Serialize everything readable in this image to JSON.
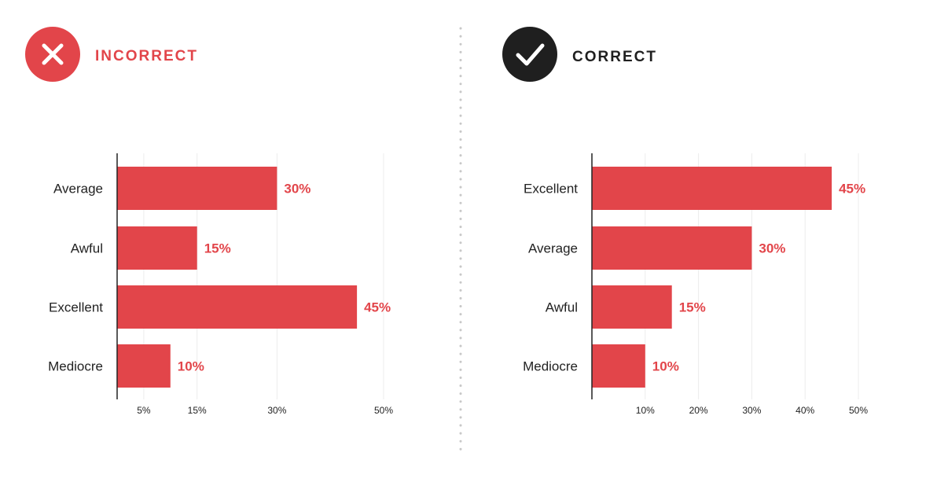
{
  "panels": [
    {
      "status": "incorrect",
      "heading": "INCORRECT",
      "icon": "x-icon",
      "icon_bg": "#e2454a",
      "heading_color": "#e2454a",
      "chart_data": {
        "type": "bar",
        "orientation": "horizontal",
        "categories": [
          "Average",
          "Awful",
          "Excellent",
          "Mediocre"
        ],
        "values": [
          30,
          15,
          45,
          10
        ],
        "value_labels": [
          "30%",
          "15%",
          "45%",
          "10%"
        ],
        "x_ticks": [
          5,
          15,
          30,
          50
        ],
        "x_tick_labels": [
          "5%",
          "15%",
          "30%",
          "50%"
        ],
        "xlim": [
          0,
          50
        ],
        "grid": true,
        "bar_color": "#e2454a"
      }
    },
    {
      "status": "correct",
      "heading": "CORRECT",
      "icon": "check-icon",
      "icon_bg": "#1f1f1f",
      "heading_color": "#1f1f1f",
      "chart_data": {
        "type": "bar",
        "orientation": "horizontal",
        "categories": [
          "Excellent",
          "Average",
          "Awful",
          "Mediocre"
        ],
        "values": [
          45,
          30,
          15,
          10
        ],
        "value_labels": [
          "45%",
          "30%",
          "15%",
          "10%"
        ],
        "x_ticks": [
          10,
          20,
          30,
          40,
          50
        ],
        "x_tick_labels": [
          "10%",
          "20%",
          "30%",
          "40%",
          "50%"
        ],
        "xlim": [
          0,
          50
        ],
        "grid": true,
        "bar_color": "#e2454a"
      }
    }
  ]
}
